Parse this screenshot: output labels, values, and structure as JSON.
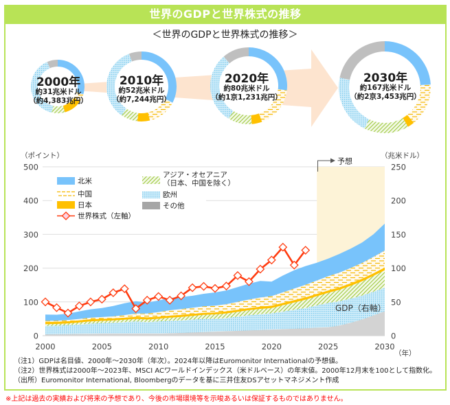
{
  "header": {
    "title": "世界のGDPと世界株式の推移"
  },
  "subtitle": "＜世界のGDPと世界株式の推移＞",
  "donuts": [
    {
      "year": 2000,
      "year_label": "2000年",
      "usd_label": "約31兆米ドル",
      "jpy_label": "（約4,383兆円）"
    },
    {
      "year": 2010,
      "year_label": "2010年",
      "usd_label": "約52兆米ドル",
      "jpy_label": "（約7,244兆円）"
    },
    {
      "year": 2020,
      "year_label": "2020年",
      "usd_label": "約80兆米ドル",
      "jpy_label": "（約1京1,231兆円）"
    },
    {
      "year": 2030,
      "year_label": "2030年",
      "usd_label": "約167兆米ドル",
      "jpy_label": "（約2京3,453兆円）"
    }
  ],
  "arrow_color": "#fde4cf",
  "chart_data": {
    "type": "area",
    "title": "",
    "x": [
      2000,
      2001,
      2002,
      2003,
      2004,
      2005,
      2006,
      2007,
      2008,
      2009,
      2010,
      2011,
      2012,
      2013,
      2014,
      2015,
      2016,
      2017,
      2018,
      2019,
      2020,
      2021,
      2022,
      2023,
      2024,
      2025,
      2026,
      2027,
      2028,
      2029,
      2030
    ],
    "xticks": [
      2000,
      2005,
      2010,
      2015,
      2020,
      2025,
      2030
    ],
    "xlabel": "（年）",
    "ylabel_left": "（ポイント）",
    "ylim_left": [
      0,
      500
    ],
    "yticks_left": [
      0,
      100,
      200,
      300,
      400,
      500
    ],
    "ylabel_right": "（兆米ドル）",
    "ylim_right": [
      0,
      250
    ],
    "yticks_right": [
      0,
      50,
      100,
      150,
      200,
      250
    ],
    "grid": true,
    "legend_position": "top-left",
    "forecast": {
      "start": 2024,
      "end": 2030,
      "label": "予想",
      "color": "#fdf3d7"
    },
    "gdp_label": "GDP（右軸）",
    "series": [
      {
        "id": "other",
        "name": "その他",
        "axis": "right",
        "fill": "solid",
        "color": "#d3d3d3",
        "legend_color": "#a6a6a6",
        "values": [
          2.0,
          2.2,
          2.4,
          2.6,
          2.8,
          3.0,
          3.0,
          3.0,
          3.0,
          3.0,
          3.0,
          3.6,
          4.2,
          4.8,
          5.4,
          6.0,
          6.6,
          7.2,
          7.8,
          8.4,
          9.0,
          9.7,
          10.4,
          11.1,
          11.8,
          12.5,
          15.0,
          19.0,
          24.0,
          30.0,
          36.0
        ]
      },
      {
        "id": "europe",
        "name": "欧州",
        "axis": "right",
        "fill": "dotted",
        "color": "#7ccbed",
        "values": [
          12.5,
          12.5,
          13.0,
          14.0,
          15.0,
          15.5,
          16.0,
          17.0,
          18.0,
          17.0,
          18.0,
          18.5,
          18.5,
          19.0,
          19.5,
          19.0,
          19.5,
          21.0,
          22.5,
          23.5,
          24.0,
          26.0,
          28.0,
          30.0,
          33.0,
          36.0,
          36.0,
          36.0,
          35.5,
          35.0,
          35.0
        ]
      },
      {
        "id": "asia_oceania",
        "name": "アジア・オセアニア（日本、中国を除く）",
        "legend_lines": [
          "アジア・オセアニア",
          "（日本、中国を除く）"
        ],
        "axis": "right",
        "fill": "hatch",
        "color": "#9cc83c",
        "values": [
          2.5,
          2.6,
          2.8,
          3.0,
          3.3,
          3.5,
          3.6,
          3.7,
          3.8,
          3.9,
          4.0,
          4.5,
          5.0,
          5.5,
          6.0,
          6.5,
          6.8,
          7.1,
          7.4,
          7.7,
          8.0,
          9.4,
          10.8,
          12.2,
          13.6,
          15.0,
          17.0,
          19.0,
          21.0,
          23.5,
          26.0
        ]
      },
      {
        "id": "japan",
        "name": "日本",
        "axis": "right",
        "fill": "solid",
        "color": "#ffc000",
        "values": [
          3.5,
          3.2,
          3.1,
          3.2,
          3.3,
          3.0,
          3.0,
          3.0,
          3.2,
          3.3,
          3.0,
          3.2,
          3.2,
          3.0,
          3.0,
          3.0,
          3.2,
          3.2,
          3.3,
          3.4,
          3.5,
          3.5,
          3.5,
          3.5,
          3.5,
          3.5,
          3.6,
          3.7,
          3.8,
          3.9,
          4.0
        ]
      },
      {
        "id": "china",
        "name": "中国",
        "axis": "right",
        "fill": "dashed",
        "color": "#f5b800",
        "values": [
          1.5,
          1.6,
          1.8,
          2.0,
          2.2,
          2.5,
          3.0,
          3.8,
          4.8,
          5.5,
          7.0,
          7.8,
          8.4,
          9.0,
          9.6,
          10.0,
          10.5,
          11.5,
          12.5,
          13.5,
          14.0,
          15.5,
          17.0,
          18.5,
          19.8,
          21.0,
          21.8,
          22.6,
          23.4,
          24.2,
          25.0
        ]
      },
      {
        "id": "north_america",
        "name": "北米",
        "axis": "right",
        "fill": "solid",
        "color": "#78c3fb",
        "values": [
          9.3,
          8.9,
          9.4,
          11.2,
          12.4,
          13.5,
          15.4,
          17.5,
          18.2,
          16.3,
          17.0,
          18.4,
          17.7,
          17.7,
          18.5,
          19.5,
          20.4,
          22.0,
          23.5,
          24.5,
          21.5,
          24.9,
          27.3,
          27.7,
          26.3,
          26.0,
          27.6,
          28.7,
          30.3,
          33.4,
          40.0
        ]
      }
    ],
    "line_series": {
      "name": "世界株式（左軸）",
      "axis": "left",
      "color": "#ff3b0f",
      "marker": "diamond",
      "marker_fill": "#ffffff",
      "legend_marker_fill": "#ffd3e2",
      "x": [
        2000,
        2001,
        2002,
        2003,
        2004,
        2005,
        2006,
        2007,
        2008,
        2009,
        2010,
        2011,
        2012,
        2013,
        2014,
        2015,
        2016,
        2017,
        2018,
        2019,
        2020,
        2021,
        2022,
        2023
      ],
      "values": [
        100,
        83,
        67,
        88,
        100,
        108,
        127,
        139,
        80,
        105,
        116,
        105,
        118,
        142,
        146,
        140,
        147,
        178,
        160,
        197,
        224,
        262,
        209,
        253
      ]
    }
  },
  "notes": [
    "（注1）GDPは名目値、2000年～2030年（年次）。2024年以降はEuromonitor Internationalの予想値。",
    "（注2）世界株式は2000年～2023年、MSCI ACワールドインデックス（米ドルベース）の年末値。2000年12月末を100として指数化。",
    "（出所）Euromonitor International, Bloombergのデータを基に三井住友DSアセットマネジメント作成"
  ],
  "disclaimer": "※上記は過去の実績および将来の予想であり、今後の市場環境等を示唆あるいは保証するものではありません。"
}
